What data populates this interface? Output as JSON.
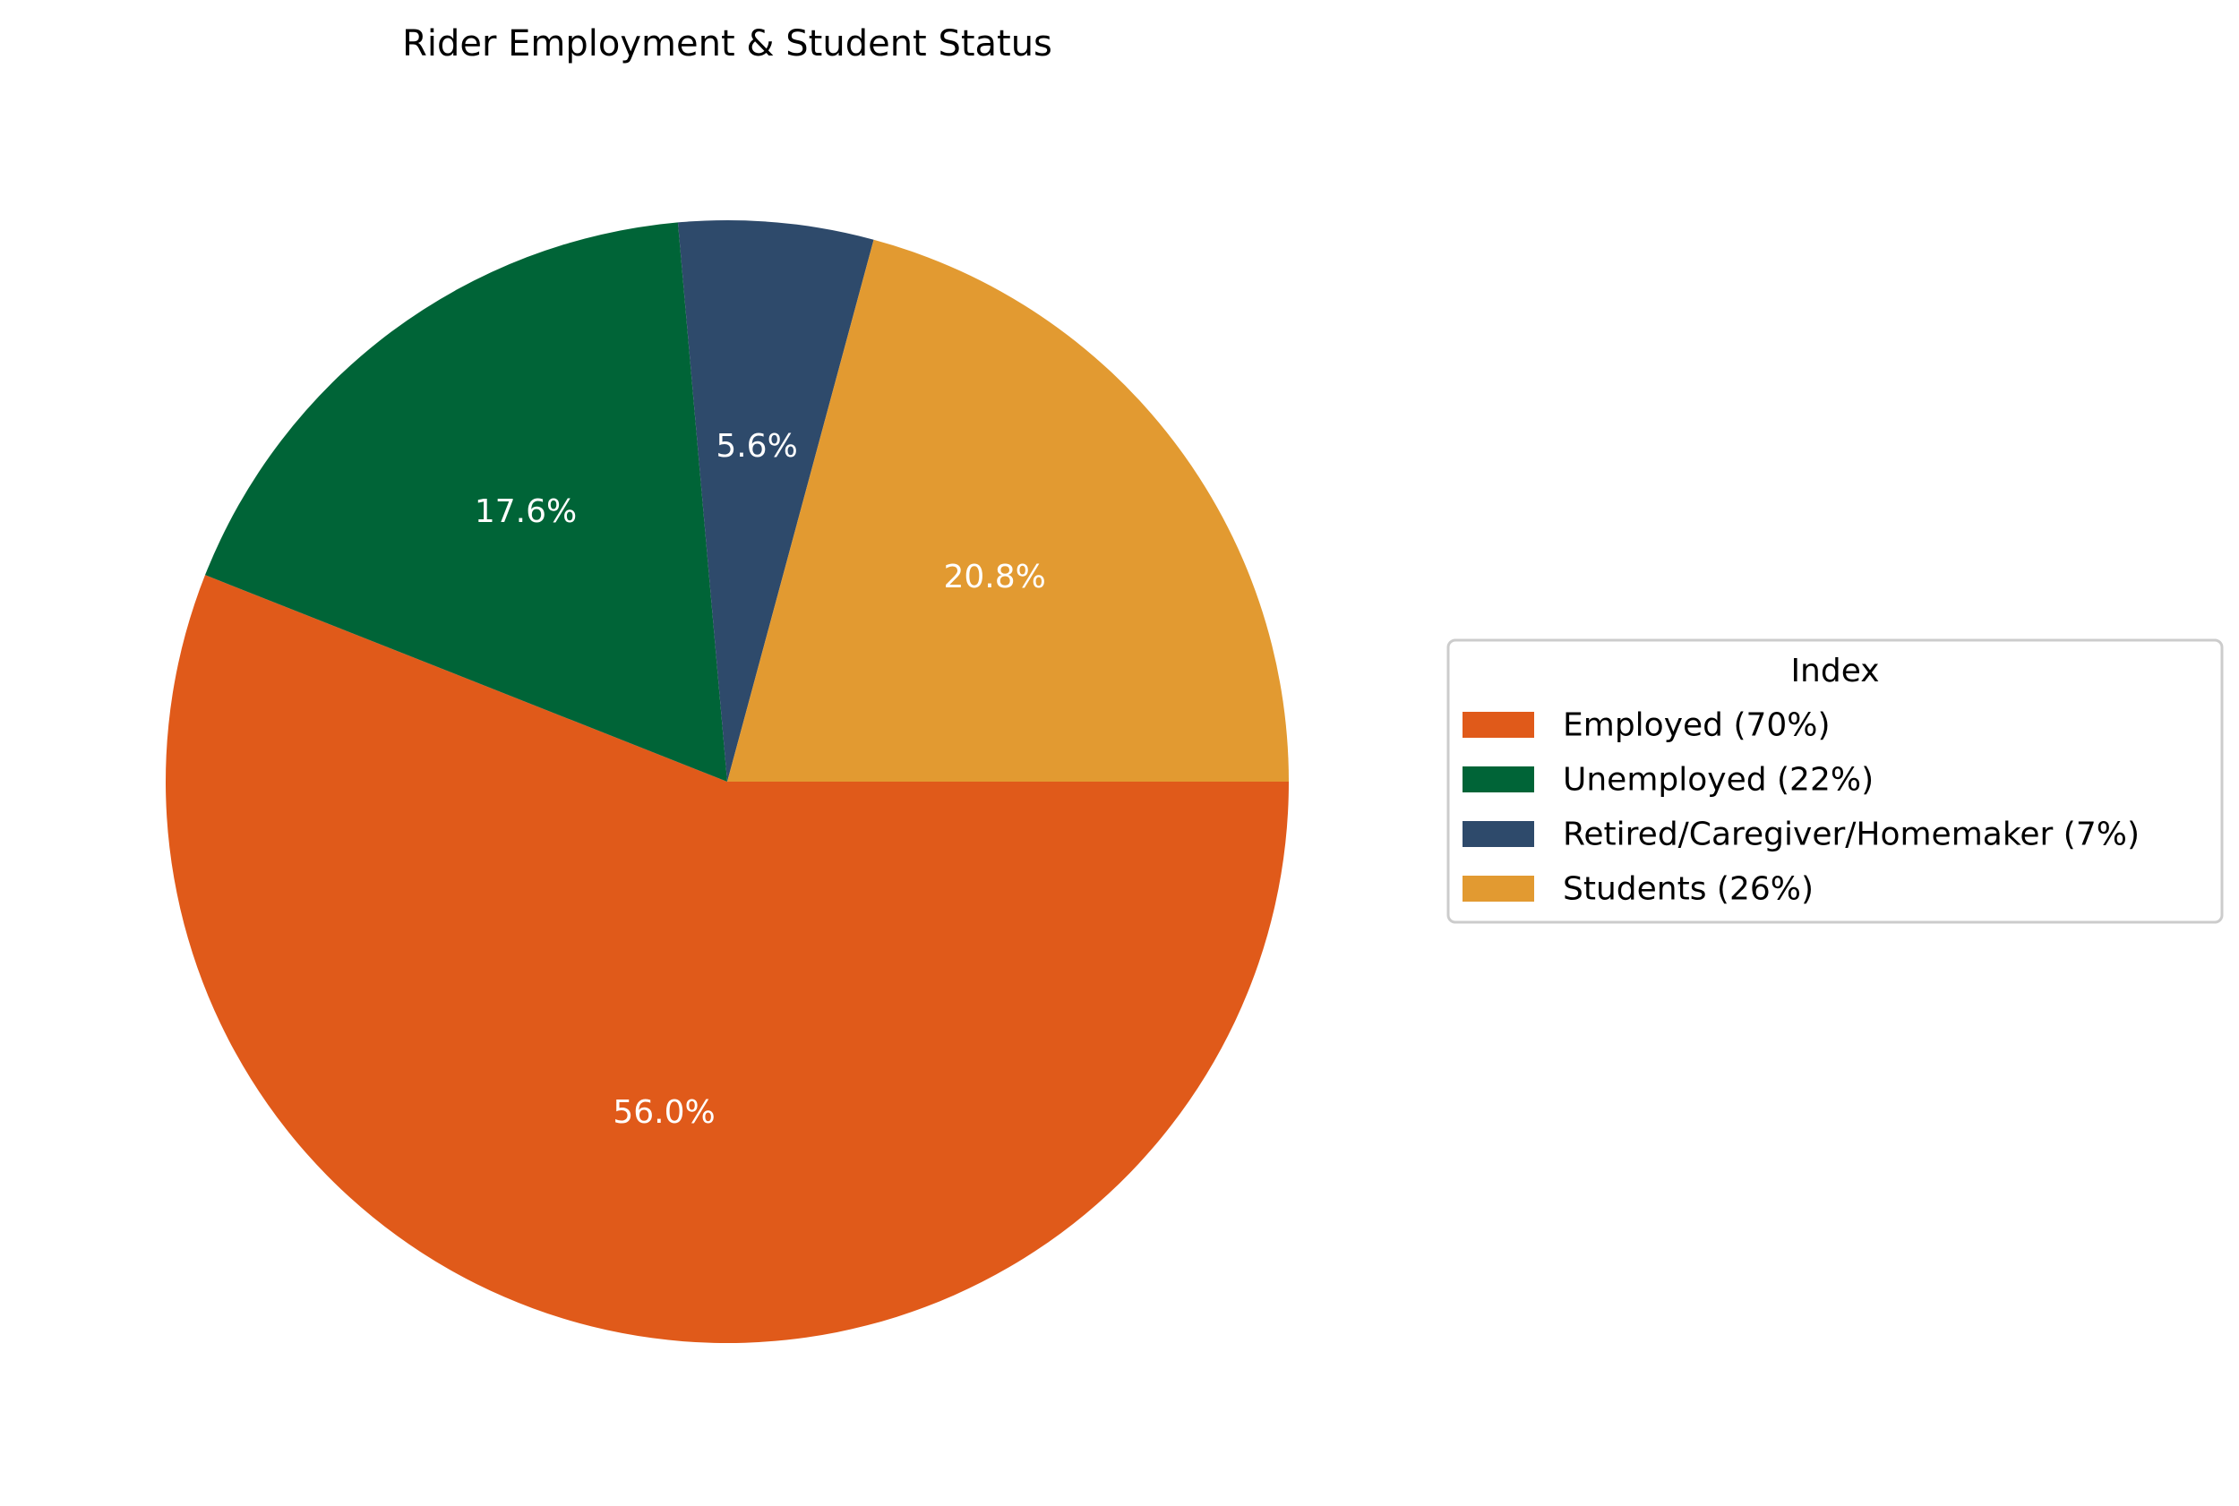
{
  "chart_data": {
    "type": "pie",
    "title": "Rider Employment & Student Status",
    "legend_title": "Index",
    "legend_placement": "center-right",
    "start_angle_deg": 0,
    "direction": "clockwise",
    "slices": [
      {
        "label": "Employed (70%)",
        "value": 70,
        "pct_label": "56.0%",
        "color": "#E05A1A"
      },
      {
        "label": "Unemployed (22%)",
        "value": 22,
        "pct_label": "17.6%",
        "color": "#006437"
      },
      {
        "label": "Retired/Caregiver/Homemaker (7%)",
        "value": 7,
        "pct_label": "5.6%",
        "color": "#2E4A6B"
      },
      {
        "label": "Students (26%)",
        "value": 26,
        "pct_label": "20.8%",
        "color": "#E29A31"
      }
    ]
  }
}
